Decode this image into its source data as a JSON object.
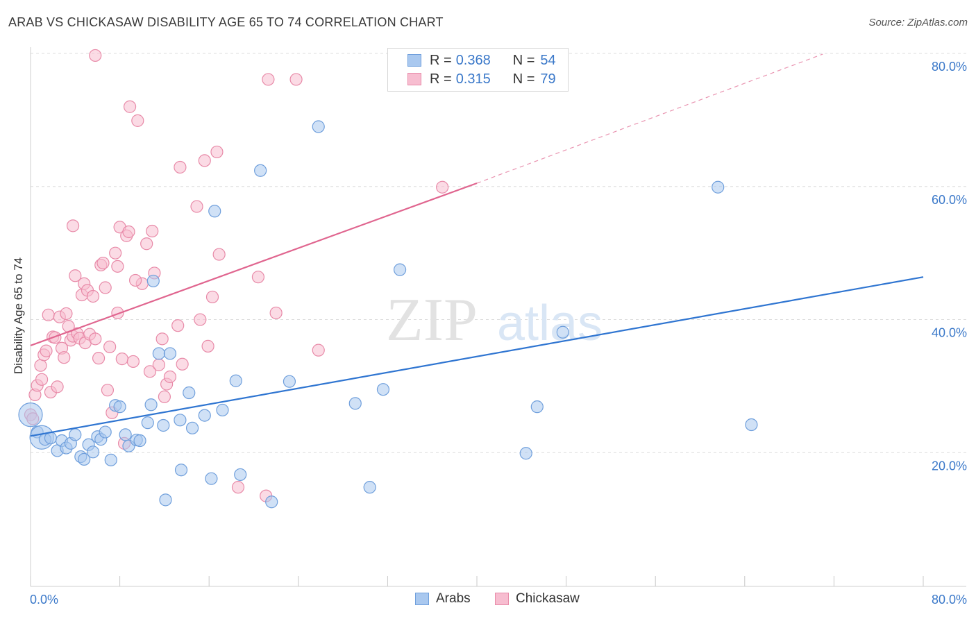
{
  "title": "ARAB VS CHICKASAW DISABILITY AGE 65 TO 74 CORRELATION CHART",
  "source": "Source: ZipAtlas.com",
  "watermark": {
    "zip": "ZIP",
    "atlas": "atlas"
  },
  "legend": {
    "rows": [
      {
        "r_label": "R =",
        "r_value": "0.368",
        "n_label": "N =",
        "n_value": "54",
        "color": "#a9c8ef",
        "border": "#6f9fdc"
      },
      {
        "r_label": "R =",
        "r_value": "0.315",
        "n_label": "N =",
        "n_value": "79",
        "color": "#f7bdd0",
        "border": "#e88aa8"
      }
    ]
  },
  "bottom_legend": [
    {
      "label": "Arabs",
      "color": "#a9c8ef",
      "border": "#6f9fdc"
    },
    {
      "label": "Chickasaw",
      "color": "#f7bdd0",
      "border": "#e88aa8"
    }
  ],
  "chart_data": {
    "type": "scatter",
    "title": "ARAB VS CHICKASAW DISABILITY AGE 65 TO 74 CORRELATION CHART",
    "xlabel": "",
    "ylabel": "Disability Age 65 to 74",
    "xlim": [
      0,
      80
    ],
    "ylim": [
      0,
      80
    ],
    "x_tick_labels": [
      "0.0%",
      "80.0%"
    ],
    "y_tick_labels": [
      {
        "value": 20,
        "label": "20.0%"
      },
      {
        "value": 40,
        "label": "40.0%"
      },
      {
        "value": 60,
        "label": "60.0%"
      },
      {
        "value": 80,
        "label": "80.0%"
      }
    ],
    "grid": true,
    "series": [
      {
        "name": "Arabs",
        "color": "#6f9fdc",
        "fill": "#a9c8ef",
        "line_color": "#2f75d1",
        "trend": {
          "x0": 0,
          "y0": 22.6,
          "x1": 80,
          "y1": 46.5,
          "dashed_from": null
        },
        "points": [
          [
            0.0,
            25.8
          ],
          [
            0.6,
            23.2
          ],
          [
            1.0,
            22.4
          ],
          [
            1.3,
            22.1
          ],
          [
            1.8,
            22.3
          ],
          [
            2.4,
            20.4
          ],
          [
            2.8,
            21.9
          ],
          [
            3.2,
            20.8
          ],
          [
            3.6,
            21.5
          ],
          [
            4.0,
            22.8
          ],
          [
            4.5,
            19.5
          ],
          [
            4.8,
            19.1
          ],
          [
            5.2,
            21.3
          ],
          [
            5.6,
            20.2
          ],
          [
            6.0,
            22.5
          ],
          [
            6.3,
            22.1
          ],
          [
            6.7,
            23.2
          ],
          [
            7.2,
            19.0
          ],
          [
            7.6,
            27.2
          ],
          [
            8.0,
            27.0
          ],
          [
            8.5,
            22.8
          ],
          [
            8.8,
            21.1
          ],
          [
            9.5,
            22.0
          ],
          [
            9.8,
            21.9
          ],
          [
            10.5,
            24.6
          ],
          [
            10.8,
            27.3
          ],
          [
            11.0,
            45.9
          ],
          [
            11.5,
            35.0
          ],
          [
            11.9,
            24.2
          ],
          [
            12.1,
            13.0
          ],
          [
            12.5,
            35.0
          ],
          [
            13.4,
            25.0
          ],
          [
            13.5,
            17.5
          ],
          [
            14.2,
            29.1
          ],
          [
            14.5,
            23.8
          ],
          [
            15.6,
            25.7
          ],
          [
            16.2,
            16.2
          ],
          [
            16.5,
            56.4
          ],
          [
            17.2,
            26.5
          ],
          [
            18.4,
            30.9
          ],
          [
            18.8,
            16.8
          ],
          [
            20.6,
            62.5
          ],
          [
            21.6,
            12.7
          ],
          [
            23.2,
            30.8
          ],
          [
            25.8,
            69.1
          ],
          [
            29.1,
            27.5
          ],
          [
            30.4,
            14.9
          ],
          [
            31.6,
            29.6
          ],
          [
            33.1,
            47.6
          ],
          [
            44.4,
            20.0
          ],
          [
            45.4,
            27.0
          ],
          [
            47.7,
            38.2
          ],
          [
            61.6,
            60.0
          ],
          [
            64.6,
            24.3
          ]
        ],
        "large_points": [
          [
            0.0,
            25.8
          ],
          [
            1.0,
            22.4
          ]
        ]
      },
      {
        "name": "Chickasaw",
        "color": "#e88aa8",
        "fill": "#f7bdd0",
        "line_color": "#e0658f",
        "trend": {
          "x0": 0,
          "y0": 36.2,
          "x1": 40,
          "y1": 60.6,
          "dashed_to_x": 71,
          "dashed_to_y": 80
        },
        "points": [
          [
            0.0,
            25.8
          ],
          [
            0.2,
            25.2
          ],
          [
            0.4,
            28.8
          ],
          [
            0.6,
            30.2
          ],
          [
            0.9,
            33.2
          ],
          [
            1.0,
            31.1
          ],
          [
            1.2,
            34.8
          ],
          [
            1.4,
            35.4
          ],
          [
            1.6,
            40.8
          ],
          [
            1.8,
            29.2
          ],
          [
            2.0,
            37.5
          ],
          [
            2.2,
            37.4
          ],
          [
            2.4,
            30.0
          ],
          [
            2.6,
            40.5
          ],
          [
            2.8,
            35.8
          ],
          [
            3.0,
            34.4
          ],
          [
            3.2,
            41.0
          ],
          [
            3.4,
            39.1
          ],
          [
            3.6,
            37.0
          ],
          [
            3.8,
            37.6
          ],
          [
            4.0,
            46.7
          ],
          [
            4.2,
            38.0
          ],
          [
            4.4,
            37.3
          ],
          [
            4.6,
            43.8
          ],
          [
            4.8,
            45.5
          ],
          [
            4.9,
            36.6
          ],
          [
            5.1,
            44.5
          ],
          [
            5.3,
            37.9
          ],
          [
            5.6,
            43.6
          ],
          [
            5.8,
            37.2
          ],
          [
            6.1,
            34.3
          ],
          [
            6.3,
            48.3
          ],
          [
            6.5,
            48.6
          ],
          [
            6.7,
            44.9
          ],
          [
            6.9,
            29.5
          ],
          [
            7.1,
            36.0
          ],
          [
            7.3,
            26.1
          ],
          [
            7.6,
            50.1
          ],
          [
            7.8,
            41.1
          ],
          [
            8.0,
            54.0
          ],
          [
            8.2,
            34.2
          ],
          [
            8.4,
            21.5
          ],
          [
            8.6,
            52.7
          ],
          [
            8.8,
            53.3
          ],
          [
            9.2,
            33.8
          ],
          [
            9.6,
            70.0
          ],
          [
            10.0,
            45.5
          ],
          [
            10.4,
            51.5
          ],
          [
            10.7,
            32.3
          ],
          [
            10.9,
            53.4
          ],
          [
            11.1,
            47.1
          ],
          [
            11.5,
            33.3
          ],
          [
            11.8,
            37.2
          ],
          [
            12.0,
            28.5
          ],
          [
            12.2,
            30.4
          ],
          [
            12.5,
            31.5
          ],
          [
            13.2,
            39.2
          ],
          [
            13.4,
            63.0
          ],
          [
            13.6,
            33.4
          ],
          [
            14.9,
            57.1
          ],
          [
            15.2,
            40.1
          ],
          [
            15.6,
            64.0
          ],
          [
            15.9,
            36.1
          ],
          [
            16.3,
            43.5
          ],
          [
            16.7,
            65.3
          ],
          [
            16.9,
            49.9
          ],
          [
            18.6,
            14.9
          ],
          [
            20.4,
            46.5
          ],
          [
            21.1,
            13.6
          ],
          [
            21.3,
            76.2
          ],
          [
            22.0,
            41.1
          ],
          [
            23.8,
            76.2
          ],
          [
            25.8,
            35.5
          ],
          [
            36.9,
            60.0
          ],
          [
            5.8,
            79.8
          ],
          [
            8.9,
            72.1
          ],
          [
            3.8,
            54.2
          ],
          [
            9.4,
            46.0
          ],
          [
            7.8,
            48.1
          ]
        ]
      }
    ]
  }
}
